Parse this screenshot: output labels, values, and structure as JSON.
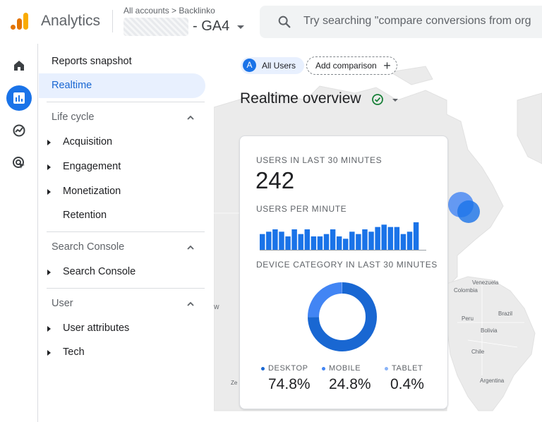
{
  "header": {
    "app_title": "Analytics",
    "breadcrumb_all": "All accounts",
    "breadcrumb_sep": ">",
    "breadcrumb_account": "Backlinko",
    "property_name": "- GA4",
    "search_placeholder": "Try searching \"compare conversions from org"
  },
  "rail": {
    "items": [
      {
        "icon": "home-icon"
      },
      {
        "icon": "reports-icon",
        "active": true
      },
      {
        "icon": "explore-icon"
      },
      {
        "icon": "advertising-icon"
      }
    ]
  },
  "nav": {
    "reports_snapshot": "Reports snapshot",
    "realtime": "Realtime",
    "sections": [
      {
        "title": "Life cycle",
        "items": [
          "Acquisition",
          "Engagement",
          "Monetization"
        ],
        "extra": "Retention"
      },
      {
        "title": "Search Console",
        "items": [
          "Search Console"
        ]
      },
      {
        "title": "User",
        "items": [
          "User attributes",
          "Tech"
        ]
      }
    ]
  },
  "toolbar": {
    "all_users_avatar": "A",
    "all_users": "All Users",
    "add_comparison": "Add comparison",
    "add_comparison_icon": "+"
  },
  "overview": {
    "title": "Realtime overview"
  },
  "map_labels": {
    "venezuela": "Venezuela",
    "colombia": "Colombia",
    "brazil": "Brazil",
    "peru": "Peru",
    "bolivia": "Bolivia",
    "chile": "Chile",
    "argentina": "Argentina",
    "w": "W",
    "ze": "Ze"
  },
  "card": {
    "users_label": "USERS IN LAST 30 MINUTES",
    "users_value": "242",
    "per_minute_label": "USERS PER MINUTE",
    "device_label": "DEVICE CATEGORY IN LAST 30 MINUTES",
    "devices": [
      {
        "name": "DESKTOP",
        "percent": "74.8%",
        "value": 74.8,
        "color": "#1967d2"
      },
      {
        "name": "MOBILE",
        "percent": "24.8%",
        "value": 24.8,
        "color": "#4285f4"
      },
      {
        "name": "TABLET",
        "percent": "0.4%",
        "value": 0.4,
        "color": "#8ab4f8"
      }
    ]
  },
  "chart_data": {
    "type": "bar",
    "title": "USERS PER MINUTE",
    "values": [
      7,
      8,
      9,
      8,
      6,
      9,
      7,
      9,
      6,
      6,
      7,
      9,
      6,
      5,
      8,
      7,
      9,
      8,
      10,
      11,
      10,
      10,
      7,
      8,
      12,
      0
    ]
  },
  "colors": {
    "accent": "#1a73e8",
    "bar": "#1a73e8",
    "nav_active_bg": "#e8f0fe"
  }
}
